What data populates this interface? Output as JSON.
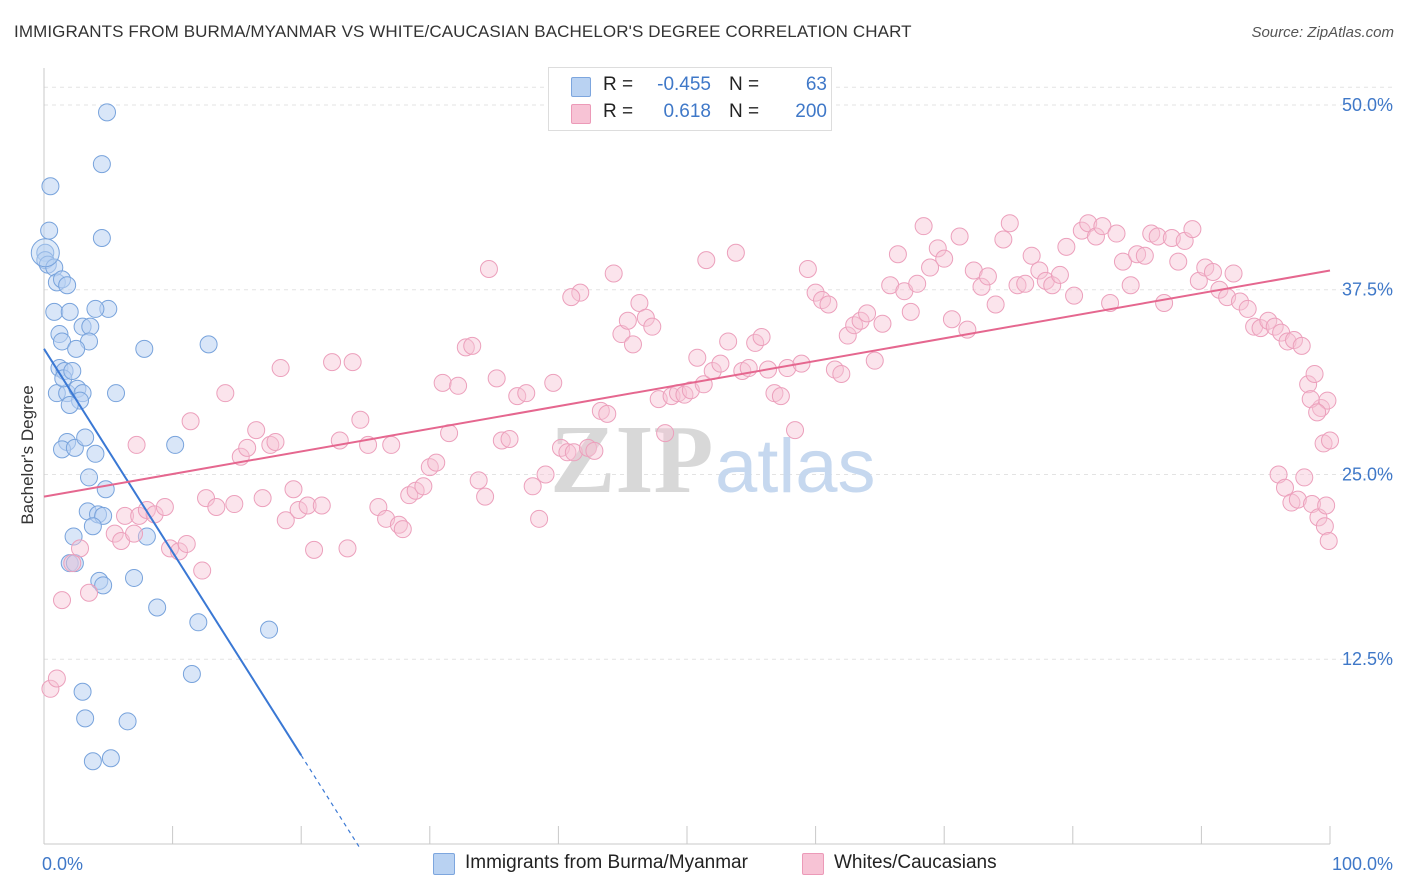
{
  "header": {
    "title": "IMMIGRANTS FROM BURMA/MYANMAR VS WHITE/CAUCASIAN BACHELOR'S DEGREE CORRELATION CHART",
    "source": "Source: ZipAtlas.com"
  },
  "legend": {
    "rows": [
      {
        "r_label": "R =",
        "r_value": "-0.455",
        "n_label": "N =",
        "n_value": "63"
      },
      {
        "r_label": "R =",
        "r_value": "0.618",
        "n_label": "N =",
        "n_value": "200"
      }
    ]
  },
  "watermark": {
    "zip": "ZIP",
    "atlas": "atlas"
  },
  "colors": {
    "blue": "#3a78d4",
    "pink": "#e5678f",
    "axis_label": "#3f78c8"
  },
  "chart_data": {
    "type": "scatter",
    "title": "IMMIGRANTS FROM BURMA/MYANMAR VS WHITE/CAUCASIAN BACHELOR'S DEGREE CORRELATION CHART",
    "xlabel": "",
    "ylabel": "Bachelor's Degree",
    "xlim": [
      0,
      100
    ],
    "ylim": [
      0,
      52.5
    ],
    "x_tick_labels": [
      "0.0%",
      "100.0%"
    ],
    "y_ticks": [
      12.5,
      25.0,
      37.5,
      50.0
    ],
    "y_tick_labels": [
      "12.5%",
      "25.0%",
      "37.5%",
      "50.0%"
    ],
    "grid": "horizontal dashed",
    "legend_position": "bottom",
    "series": [
      {
        "name": "Immigrants from Burma/Myanmar",
        "color": "#3a78d4",
        "trend": {
          "x0": 0,
          "y0": 33.5,
          "x1": 20,
          "y1": 6.0,
          "dash_to_x": 24.5
        },
        "points": [
          [
            0.1,
            40.0
          ],
          [
            0.1,
            39.5
          ],
          [
            0.3,
            39.2
          ],
          [
            0.8,
            39.0
          ],
          [
            0.5,
            44.5
          ],
          [
            4.5,
            41.0
          ],
          [
            5.0,
            36.2
          ],
          [
            1.0,
            38.0
          ],
          [
            1.4,
            38.2
          ],
          [
            1.8,
            37.8
          ],
          [
            0.8,
            36.0
          ],
          [
            2.0,
            36.0
          ],
          [
            3.0,
            35.0
          ],
          [
            3.6,
            35.0
          ],
          [
            4.0,
            36.2
          ],
          [
            1.2,
            34.5
          ],
          [
            1.4,
            34.0
          ],
          [
            3.5,
            34.0
          ],
          [
            7.8,
            33.5
          ],
          [
            12.8,
            33.8
          ],
          [
            1.2,
            32.2
          ],
          [
            1.6,
            32.0
          ],
          [
            2.5,
            33.5
          ],
          [
            1.0,
            30.5
          ],
          [
            1.8,
            30.5
          ],
          [
            2.6,
            30.8
          ],
          [
            3.0,
            30.5
          ],
          [
            2.8,
            30.0
          ],
          [
            2.0,
            29.7
          ],
          [
            5.6,
            30.5
          ],
          [
            1.8,
            27.2
          ],
          [
            1.4,
            26.7
          ],
          [
            2.4,
            26.8
          ],
          [
            4.0,
            26.4
          ],
          [
            10.2,
            27.0
          ],
          [
            3.5,
            24.8
          ],
          [
            4.8,
            24.0
          ],
          [
            3.4,
            22.5
          ],
          [
            4.2,
            22.3
          ],
          [
            4.6,
            22.2
          ],
          [
            3.8,
            21.5
          ],
          [
            2.3,
            20.8
          ],
          [
            8.0,
            20.8
          ],
          [
            2.0,
            19.0
          ],
          [
            2.4,
            19.0
          ],
          [
            4.3,
            17.8
          ],
          [
            4.6,
            17.5
          ],
          [
            7.0,
            18.0
          ],
          [
            8.8,
            16.0
          ],
          [
            12.0,
            15.0
          ],
          [
            17.5,
            14.5
          ],
          [
            11.5,
            11.5
          ],
          [
            3.0,
            10.3
          ],
          [
            3.2,
            8.5
          ],
          [
            6.5,
            8.3
          ],
          [
            3.8,
            5.6
          ],
          [
            5.2,
            5.8
          ],
          [
            4.5,
            46.0
          ],
          [
            4.9,
            49.5
          ],
          [
            1.5,
            31.5
          ],
          [
            2.2,
            32.0
          ],
          [
            3.2,
            27.5
          ],
          [
            0.4,
            41.5
          ]
        ]
      },
      {
        "name": "Whites/Caucasians",
        "color": "#e5678f",
        "trend": {
          "x0": 0,
          "y0": 23.5,
          "x1": 100,
          "y1": 38.8
        },
        "points": [
          [
            0.5,
            10.5
          ],
          [
            1.0,
            11.2
          ],
          [
            1.4,
            16.5
          ],
          [
            3.5,
            17.0
          ],
          [
            2.2,
            19.0
          ],
          [
            2.8,
            20.0
          ],
          [
            5.5,
            21.0
          ],
          [
            6.0,
            20.5
          ],
          [
            7.0,
            21.0
          ],
          [
            6.3,
            22.2
          ],
          [
            7.4,
            22.2
          ],
          [
            8.0,
            22.6
          ],
          [
            8.6,
            22.3
          ],
          [
            9.4,
            22.8
          ],
          [
            9.8,
            20.0
          ],
          [
            10.5,
            19.8
          ],
          [
            11.1,
            20.3
          ],
          [
            12.3,
            18.5
          ],
          [
            12.6,
            23.4
          ],
          [
            13.4,
            22.8
          ],
          [
            14.8,
            23.0
          ],
          [
            15.3,
            26.2
          ],
          [
            15.8,
            26.8
          ],
          [
            16.5,
            28.0
          ],
          [
            17.0,
            23.4
          ],
          [
            17.6,
            27.0
          ],
          [
            18.0,
            27.2
          ],
          [
            18.8,
            21.9
          ],
          [
            19.4,
            24.0
          ],
          [
            19.8,
            22.6
          ],
          [
            20.5,
            22.9
          ],
          [
            21.0,
            19.9
          ],
          [
            21.6,
            22.9
          ],
          [
            22.4,
            32.6
          ],
          [
            23.0,
            27.3
          ],
          [
            23.6,
            20.0
          ],
          [
            24.0,
            32.6
          ],
          [
            24.6,
            28.7
          ],
          [
            25.2,
            27.0
          ],
          [
            26.0,
            22.8
          ],
          [
            26.6,
            22.0
          ],
          [
            27.0,
            27.0
          ],
          [
            27.6,
            21.6
          ],
          [
            28.4,
            23.6
          ],
          [
            28.9,
            23.9
          ],
          [
            29.5,
            24.2
          ],
          [
            30.0,
            25.5
          ],
          [
            30.5,
            25.8
          ],
          [
            31.0,
            31.2
          ],
          [
            31.5,
            27.8
          ],
          [
            32.2,
            31.0
          ],
          [
            32.8,
            33.6
          ],
          [
            33.3,
            33.7
          ],
          [
            33.8,
            24.6
          ],
          [
            34.3,
            23.5
          ],
          [
            34.6,
            38.9
          ],
          [
            35.2,
            31.5
          ],
          [
            35.6,
            27.3
          ],
          [
            36.2,
            27.4
          ],
          [
            36.8,
            30.3
          ],
          [
            37.5,
            30.5
          ],
          [
            38.0,
            24.2
          ],
          [
            38.5,
            22.0
          ],
          [
            39.0,
            25.0
          ],
          [
            39.6,
            31.2
          ],
          [
            40.2,
            26.8
          ],
          [
            40.7,
            26.5
          ],
          [
            41.2,
            26.5
          ],
          [
            41.7,
            37.3
          ],
          [
            42.3,
            26.8
          ],
          [
            42.8,
            26.6
          ],
          [
            43.3,
            29.3
          ],
          [
            43.8,
            29.1
          ],
          [
            44.3,
            38.6
          ],
          [
            44.9,
            34.5
          ],
          [
            45.4,
            35.4
          ],
          [
            45.8,
            33.8
          ],
          [
            46.3,
            36.6
          ],
          [
            46.8,
            35.6
          ],
          [
            47.3,
            35.0
          ],
          [
            47.8,
            30.1
          ],
          [
            48.3,
            27.8
          ],
          [
            48.8,
            30.3
          ],
          [
            49.3,
            30.5
          ],
          [
            49.8,
            30.4
          ],
          [
            50.3,
            30.7
          ],
          [
            50.8,
            32.9
          ],
          [
            51.3,
            31.1
          ],
          [
            52.0,
            32.0
          ],
          [
            52.6,
            32.5
          ],
          [
            53.2,
            34.0
          ],
          [
            53.8,
            40.0
          ],
          [
            54.3,
            32.0
          ],
          [
            54.8,
            32.2
          ],
          [
            55.3,
            33.9
          ],
          [
            55.8,
            34.3
          ],
          [
            56.3,
            32.1
          ],
          [
            56.8,
            30.5
          ],
          [
            57.3,
            30.3
          ],
          [
            57.8,
            32.2
          ],
          [
            58.4,
            28.0
          ],
          [
            58.9,
            32.5
          ],
          [
            59.4,
            38.9
          ],
          [
            60.0,
            37.3
          ],
          [
            60.5,
            36.8
          ],
          [
            61.0,
            36.5
          ],
          [
            61.5,
            32.1
          ],
          [
            62.0,
            31.8
          ],
          [
            62.5,
            34.4
          ],
          [
            63.0,
            35.1
          ],
          [
            63.5,
            35.4
          ],
          [
            64.0,
            35.9
          ],
          [
            64.6,
            32.7
          ],
          [
            65.2,
            35.2
          ],
          [
            65.8,
            37.8
          ],
          [
            66.4,
            39.9
          ],
          [
            66.9,
            37.4
          ],
          [
            67.4,
            36.0
          ],
          [
            67.9,
            37.9
          ],
          [
            68.4,
            41.8
          ],
          [
            68.9,
            39.0
          ],
          [
            69.5,
            40.3
          ],
          [
            70.0,
            39.6
          ],
          [
            70.6,
            35.5
          ],
          [
            71.2,
            41.1
          ],
          [
            71.8,
            34.8
          ],
          [
            72.3,
            38.8
          ],
          [
            72.9,
            37.7
          ],
          [
            73.4,
            38.4
          ],
          [
            74.0,
            36.5
          ],
          [
            74.6,
            40.9
          ],
          [
            75.1,
            42.0
          ],
          [
            75.7,
            37.8
          ],
          [
            76.3,
            37.9
          ],
          [
            76.8,
            39.8
          ],
          [
            77.4,
            38.8
          ],
          [
            77.9,
            38.1
          ],
          [
            78.4,
            37.8
          ],
          [
            79.0,
            38.5
          ],
          [
            79.5,
            40.4
          ],
          [
            80.1,
            37.1
          ],
          [
            80.7,
            41.5
          ],
          [
            81.2,
            42.0
          ],
          [
            81.8,
            41.1
          ],
          [
            82.3,
            41.8
          ],
          [
            82.9,
            36.6
          ],
          [
            83.4,
            41.3
          ],
          [
            83.9,
            39.4
          ],
          [
            84.5,
            37.8
          ],
          [
            85.0,
            39.9
          ],
          [
            85.6,
            39.8
          ],
          [
            86.1,
            41.3
          ],
          [
            86.6,
            41.1
          ],
          [
            87.1,
            36.6
          ],
          [
            87.7,
            41.0
          ],
          [
            88.2,
            39.4
          ],
          [
            88.7,
            40.8
          ],
          [
            89.3,
            41.6
          ],
          [
            89.8,
            38.1
          ],
          [
            90.3,
            39.0
          ],
          [
            90.9,
            38.7
          ],
          [
            91.4,
            37.5
          ],
          [
            92.0,
            37.0
          ],
          [
            92.5,
            38.6
          ],
          [
            93.0,
            36.7
          ],
          [
            93.6,
            36.2
          ],
          [
            94.1,
            35.0
          ],
          [
            94.6,
            34.9
          ],
          [
            95.2,
            35.4
          ],
          [
            95.7,
            35.0
          ],
          [
            96.2,
            34.6
          ],
          [
            96.7,
            34.0
          ],
          [
            97.2,
            34.1
          ],
          [
            97.8,
            33.7
          ],
          [
            98.3,
            31.1
          ],
          [
            98.8,
            31.8
          ],
          [
            99.3,
            29.5
          ],
          [
            99.8,
            30.0
          ],
          [
            98.5,
            30.1
          ],
          [
            99.0,
            29.2
          ],
          [
            99.5,
            27.1
          ],
          [
            100.0,
            27.3
          ],
          [
            96.0,
            25.0
          ],
          [
            96.5,
            24.1
          ],
          [
            97.0,
            23.1
          ],
          [
            97.5,
            23.3
          ],
          [
            98.0,
            24.8
          ],
          [
            98.6,
            23.0
          ],
          [
            99.1,
            22.1
          ],
          [
            99.6,
            21.5
          ],
          [
            99.9,
            20.5
          ],
          [
            99.7,
            22.9
          ],
          [
            7.2,
            27.0
          ],
          [
            11.4,
            28.6
          ],
          [
            14.1,
            30.5
          ],
          [
            18.4,
            32.2
          ],
          [
            27.9,
            21.3
          ],
          [
            41.0,
            37.0
          ],
          [
            51.5,
            39.5
          ]
        ]
      }
    ]
  },
  "bottom_legend": {
    "items": [
      {
        "label": "Immigrants from Burma/Myanmar"
      },
      {
        "label": "Whites/Caucasians"
      }
    ]
  }
}
